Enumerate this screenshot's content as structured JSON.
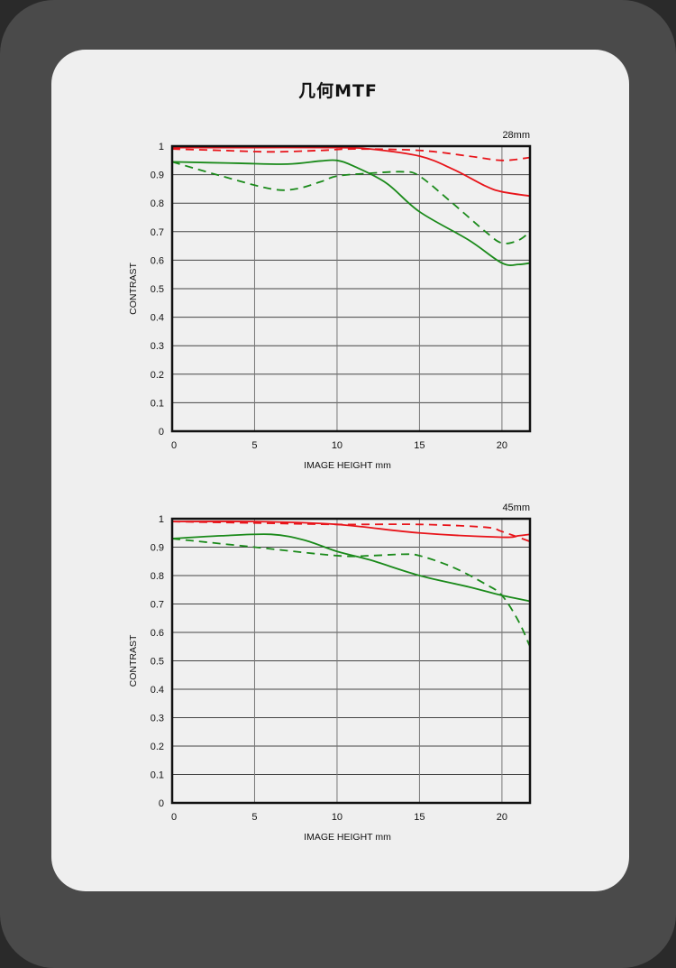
{
  "title": "几何MTF",
  "colors": {
    "sagittal_solid": "#e8141a",
    "green": "#1a8a1a",
    "grid": "#555555"
  },
  "chart_data": [
    {
      "type": "line",
      "title": "28mm",
      "xlabel": "IMAGE HEIGHT   mm",
      "ylabel": "CONTRAST",
      "xlim": [
        0,
        21.7
      ],
      "ylim": [
        0,
        1
      ],
      "xticks": [
        0,
        5,
        10,
        15,
        20
      ],
      "yticks": [
        0,
        0.1,
        0.2,
        0.3,
        0.4,
        0.5,
        0.6,
        0.7,
        0.8,
        0.9,
        1
      ],
      "ytick_labels": [
        "0",
        "0.1",
        "0.2",
        "0.3",
        "0.4",
        "0.5",
        "0.6",
        "0.7",
        "0.8",
        "0.9",
        "1"
      ],
      "grid": true,
      "series": [
        {
          "name": "red-solid",
          "color": "#e8141a",
          "dash": false,
          "x": [
            0,
            5,
            10,
            12,
            15,
            17,
            19,
            20,
            21.7
          ],
          "y": [
            0.995,
            0.995,
            0.995,
            0.99,
            0.965,
            0.92,
            0.86,
            0.84,
            0.825
          ]
        },
        {
          "name": "red-dashed",
          "color": "#e8141a",
          "dash": true,
          "x": [
            0,
            3,
            6,
            9,
            11,
            15,
            18,
            20,
            21.7
          ],
          "y": [
            0.99,
            0.985,
            0.98,
            0.985,
            0.99,
            0.985,
            0.965,
            0.95,
            0.96
          ]
        },
        {
          "name": "green-solid",
          "color": "#1a8a1a",
          "dash": false,
          "x": [
            0,
            4,
            7,
            9,
            10,
            11,
            13,
            15,
            18,
            20,
            21,
            21.7
          ],
          "y": [
            0.945,
            0.94,
            0.937,
            0.948,
            0.95,
            0.93,
            0.87,
            0.77,
            0.67,
            0.59,
            0.585,
            0.59
          ]
        },
        {
          "name": "green-dashed",
          "color": "#1a8a1a",
          "dash": true,
          "x": [
            0,
            3,
            6,
            7.5,
            9,
            10,
            12,
            14,
            15,
            17,
            19,
            20,
            21,
            21.7
          ],
          "y": [
            0.945,
            0.895,
            0.85,
            0.85,
            0.875,
            0.895,
            0.905,
            0.91,
            0.895,
            0.8,
            0.7,
            0.66,
            0.67,
            0.7
          ]
        }
      ]
    },
    {
      "type": "line",
      "title": "45mm",
      "xlabel": "IMAGE HEIGHT   mm",
      "ylabel": "CONTRAST",
      "xlim": [
        0,
        21.7
      ],
      "ylim": [
        0,
        1
      ],
      "xticks": [
        0,
        5,
        10,
        15,
        20
      ],
      "yticks": [
        0,
        0.1,
        0.2,
        0.3,
        0.4,
        0.5,
        0.6,
        0.7,
        0.8,
        0.9,
        1
      ],
      "ytick_labels": [
        "0",
        "0.1",
        "0.2",
        "0.3",
        "0.4",
        "0.5",
        "0.6",
        "0.7",
        "0.8",
        "0.9",
        "1"
      ],
      "grid": true,
      "series": [
        {
          "name": "red-solid",
          "color": "#e8141a",
          "dash": false,
          "x": [
            0,
            5,
            10,
            15,
            20,
            21,
            21.7
          ],
          "y": [
            0.99,
            0.99,
            0.98,
            0.95,
            0.935,
            0.94,
            0.945
          ]
        },
        {
          "name": "red-dashed",
          "color": "#e8141a",
          "dash": true,
          "x": [
            0,
            5,
            10,
            15,
            19,
            20,
            21.7
          ],
          "y": [
            0.99,
            0.985,
            0.98,
            0.98,
            0.97,
            0.955,
            0.92
          ]
        },
        {
          "name": "green-solid",
          "color": "#1a8a1a",
          "dash": false,
          "x": [
            0,
            3,
            6,
            8,
            10,
            12,
            15,
            18,
            20,
            21.7
          ],
          "y": [
            0.93,
            0.94,
            0.945,
            0.925,
            0.885,
            0.855,
            0.8,
            0.76,
            0.73,
            0.71
          ]
        },
        {
          "name": "green-dashed",
          "color": "#1a8a1a",
          "dash": true,
          "x": [
            0,
            5,
            10,
            12,
            14,
            15,
            17,
            19,
            20,
            21,
            21.7
          ],
          "y": [
            0.93,
            0.9,
            0.87,
            0.87,
            0.875,
            0.87,
            0.83,
            0.77,
            0.73,
            0.64,
            0.55
          ]
        }
      ]
    }
  ]
}
